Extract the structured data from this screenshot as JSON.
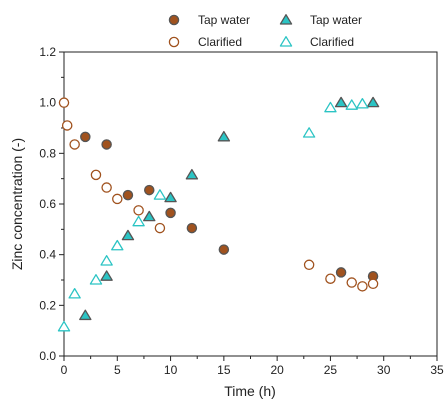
{
  "chart_data": {
    "type": "scatter",
    "xlabel": "Time (h)",
    "ylabel": "Zinc concentration (-)",
    "xlim": [
      0,
      35
    ],
    "ylim": [
      0,
      1.2
    ],
    "xticks": [
      "0",
      "5",
      "10",
      "15",
      "20",
      "25",
      "30",
      "35"
    ],
    "yticks": [
      "0.0",
      "0.2",
      "0.4",
      "0.6",
      "0.8",
      "1.0",
      "1.2"
    ],
    "grid": false,
    "legend_position": "top",
    "colors": {
      "brown": "#A0521E",
      "teal": "#2BC4C4",
      "edge": "#555555"
    },
    "series": [
      {
        "name": "Tap water",
        "marker": "circle",
        "filled": true,
        "color": "#A0521E",
        "x": [
          2,
          4,
          6,
          8,
          10,
          12,
          15,
          26,
          29
        ],
        "y": [
          0.865,
          0.835,
          0.635,
          0.655,
          0.565,
          0.505,
          0.42,
          0.33,
          0.315
        ]
      },
      {
        "name": "Clarified",
        "marker": "circle",
        "filled": false,
        "color": "#A0521E",
        "x": [
          0,
          0.3,
          1,
          3,
          4,
          5,
          7,
          9,
          23,
          25,
          27,
          28,
          29
        ],
        "y": [
          1.0,
          0.91,
          0.835,
          0.715,
          0.665,
          0.62,
          0.575,
          0.505,
          0.36,
          0.305,
          0.29,
          0.275,
          0.285
        ]
      },
      {
        "name": "Tap water",
        "marker": "triangle",
        "filled": true,
        "color": "#2BC4C4",
        "x": [
          2,
          4,
          6,
          8,
          10,
          12,
          15,
          26,
          29
        ],
        "y": [
          0.16,
          0.315,
          0.475,
          0.55,
          0.625,
          0.715,
          0.865,
          1.0,
          1.0
        ]
      },
      {
        "name": "Clarified",
        "marker": "triangle",
        "filled": false,
        "color": "#2BC4C4",
        "x": [
          0,
          1,
          3,
          4,
          5,
          7,
          9,
          23,
          25,
          27,
          28
        ],
        "y": [
          0.115,
          0.245,
          0.3,
          0.375,
          0.435,
          0.53,
          0.635,
          0.88,
          0.98,
          0.99,
          0.995
        ]
      }
    ]
  }
}
